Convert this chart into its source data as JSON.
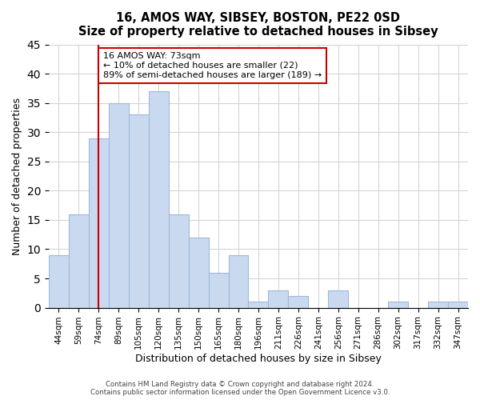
{
  "title": "16, AMOS WAY, SIBSEY, BOSTON, PE22 0SD",
  "subtitle": "Size of property relative to detached houses in Sibsey",
  "xlabel": "Distribution of detached houses by size in Sibsey",
  "ylabel": "Number of detached properties",
  "bar_labels": [
    "44sqm",
    "59sqm",
    "74sqm",
    "89sqm",
    "105sqm",
    "120sqm",
    "135sqm",
    "150sqm",
    "165sqm",
    "180sqm",
    "196sqm",
    "211sqm",
    "226sqm",
    "241sqm",
    "256sqm",
    "271sqm",
    "286sqm",
    "302sqm",
    "317sqm",
    "332sqm",
    "347sqm"
  ],
  "bar_values": [
    9,
    16,
    29,
    35,
    33,
    37,
    16,
    12,
    6,
    9,
    1,
    3,
    2,
    0,
    3,
    0,
    0,
    1,
    0,
    1,
    1
  ],
  "bar_color": "#c9d9f0",
  "bar_edge_color": "#a0b8d8",
  "ylim": [
    0,
    45
  ],
  "yticks": [
    0,
    5,
    10,
    15,
    20,
    25,
    30,
    35,
    40,
    45
  ],
  "property_line_x": 2,
  "property_line_color": "#cc0000",
  "annotation_title": "16 AMOS WAY: 73sqm",
  "annotation_line1": "← 10% of detached houses are smaller (22)",
  "annotation_line2": "89% of semi-detached houses are larger (189) →",
  "annotation_box_color": "#ffffff",
  "annotation_box_edge": "#cc0000",
  "footnote1": "Contains HM Land Registry data © Crown copyright and database right 2024.",
  "footnote2": "Contains public sector information licensed under the Open Government Licence v3.0."
}
